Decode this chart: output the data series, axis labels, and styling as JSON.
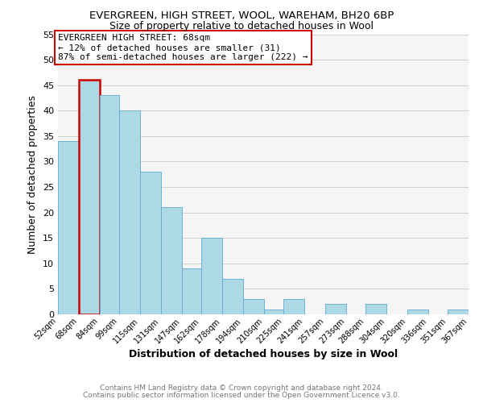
{
  "title1": "EVERGREEN, HIGH STREET, WOOL, WAREHAM, BH20 6BP",
  "title2": "Size of property relative to detached houses in Wool",
  "xlabel": "Distribution of detached houses by size in Wool",
  "ylabel": "Number of detached properties",
  "bin_edges": [
    52,
    68,
    84,
    99,
    115,
    131,
    147,
    162,
    178,
    194,
    210,
    225,
    241,
    257,
    273,
    288,
    304,
    320,
    336,
    351,
    367
  ],
  "bin_labels": [
    "52sqm",
    "68sqm",
    "84sqm",
    "99sqm",
    "115sqm",
    "131sqm",
    "147sqm",
    "162sqm",
    "178sqm",
    "194sqm",
    "210sqm",
    "225sqm",
    "241sqm",
    "257sqm",
    "273sqm",
    "288sqm",
    "304sqm",
    "320sqm",
    "336sqm",
    "351sqm",
    "367sqm"
  ],
  "counts": [
    34,
    46,
    43,
    40,
    28,
    21,
    9,
    15,
    7,
    3,
    1,
    3,
    0,
    2,
    0,
    2,
    0,
    1,
    0,
    1
  ],
  "bar_color": "#add8e6",
  "bar_edgecolor": "#6ab0d4",
  "property_bin_index": 1,
  "annotation_line1": "EVERGREEN HIGH STREET: 68sqm",
  "annotation_line2": "← 12% of detached houses are smaller (31)",
  "annotation_line3": "87% of semi-detached houses are larger (222) →",
  "footer1": "Contains HM Land Registry data © Crown copyright and database right 2024.",
  "footer2": "Contains public sector information licensed under the Open Government Licence v3.0.",
  "ylim": [
    0,
    55
  ],
  "yticks": [
    0,
    5,
    10,
    15,
    20,
    25,
    30,
    35,
    40,
    45,
    50,
    55
  ],
  "highlight_edge_color": "#cc0000",
  "annotation_box_edgecolor": "#cc0000",
  "annotation_box_facecolor": "#ffffff",
  "grid_color": "#d0d0d0",
  "bg_color": "#f5f5f5"
}
